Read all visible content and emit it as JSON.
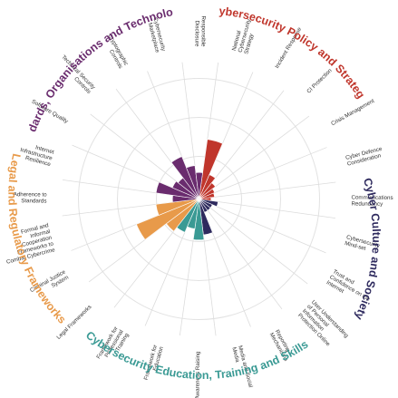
{
  "dimensions": [
    {
      "key": "policy",
      "title": "Cybersecurity Policy and Strategy",
      "color": "#c0362c"
    },
    {
      "key": "culture",
      "title": "Cyber Culture and Society",
      "color": "#2e2a5e"
    },
    {
      "key": "education",
      "title": "Cybersecurity Education, Training and Skills",
      "color": "#3a9a94"
    },
    {
      "key": "legal",
      "title": "Legal and Regulatory Frameworks",
      "color": "#e89a4a"
    },
    {
      "key": "standards",
      "title": "Standards, Organisations and Technologies",
      "color": "#6a2c6e"
    }
  ],
  "factors": [
    {
      "dim": 0,
      "label": "National Cybersecurity Strategy",
      "value": 0.5,
      "color": "#c0362c"
    },
    {
      "dim": 0,
      "label": "Incident Response",
      "value": 0.22,
      "color": "#c0362c"
    },
    {
      "dim": 0,
      "label": "CI Protection",
      "value": 0.17,
      "color": "#c0362c"
    },
    {
      "dim": 0,
      "label": "Crisis Management",
      "value": 0.14,
      "color": "#c0362c"
    },
    {
      "dim": 0,
      "label": "Cyber Defence Consideration",
      "value": 0.13,
      "color": "#c0362c"
    },
    {
      "dim": 0,
      "label": "Communications Redundancy",
      "value": 0.1,
      "color": "#c0362c"
    },
    {
      "dim": 1,
      "label": "Cybersecurity Mind-set",
      "value": 0.16,
      "color": "#2e2a5e"
    },
    {
      "dim": 1,
      "label": "Trust and Confidence on the Internet",
      "value": 0.12,
      "color": "#2e2a5e"
    },
    {
      "dim": 1,
      "label": "User Understanding of Personal Information Protection Online",
      "value": 0.12,
      "color": "#2e2a5e"
    },
    {
      "dim": 1,
      "label": "Reporting Mechanisms",
      "value": 0.12,
      "color": "#2e2a5e"
    },
    {
      "dim": 1,
      "label": "Media and Social Media",
      "value": 0.3,
      "color": "#2e2a5e"
    },
    {
      "dim": 2,
      "label": "Awareness Raising",
      "value": 0.34,
      "color": "#3a9a94"
    },
    {
      "dim": 2,
      "label": "Framework for Education",
      "value": 0.25,
      "color": "#3a9a94"
    },
    {
      "dim": 2,
      "label": "Framework for Professional Training",
      "value": 0.3,
      "color": "#3a9a94"
    },
    {
      "dim": 3,
      "label": "Legal Frameworks",
      "value": 0.34,
      "color": "#e89a4a"
    },
    {
      "dim": 3,
      "label": "Criminal Justice System",
      "value": 0.56,
      "color": "#e89a4a"
    },
    {
      "dim": 3,
      "label": "Formal and Informal Cooperation Frameworks to Combat Cybercrime",
      "value": 0.36,
      "color": "#e89a4a"
    },
    {
      "dim": 4,
      "label": "Adherence to Standards",
      "value": 0.22,
      "color": "#6a2c6e"
    },
    {
      "dim": 4,
      "label": "Internet Infrastructure Resilience",
      "value": 0.36,
      "color": "#6a2c6e"
    },
    {
      "dim": 4,
      "label": "Software Quality",
      "value": 0.24,
      "color": "#6a2c6e"
    },
    {
      "dim": 4,
      "label": "Technical Security Controls",
      "value": 0.22,
      "color": "#6a2c6e"
    },
    {
      "dim": 4,
      "label": "Cryptographic Controls",
      "value": 0.38,
      "color": "#6a2c6e"
    },
    {
      "dim": 4,
      "label": "Cybersecurity Marketplace",
      "value": 0.28,
      "color": "#6a2c6e"
    },
    {
      "dim": 4,
      "label": "Responsible Disclosure",
      "value": 0.22,
      "color": "#6a2c6e"
    }
  ]
}
